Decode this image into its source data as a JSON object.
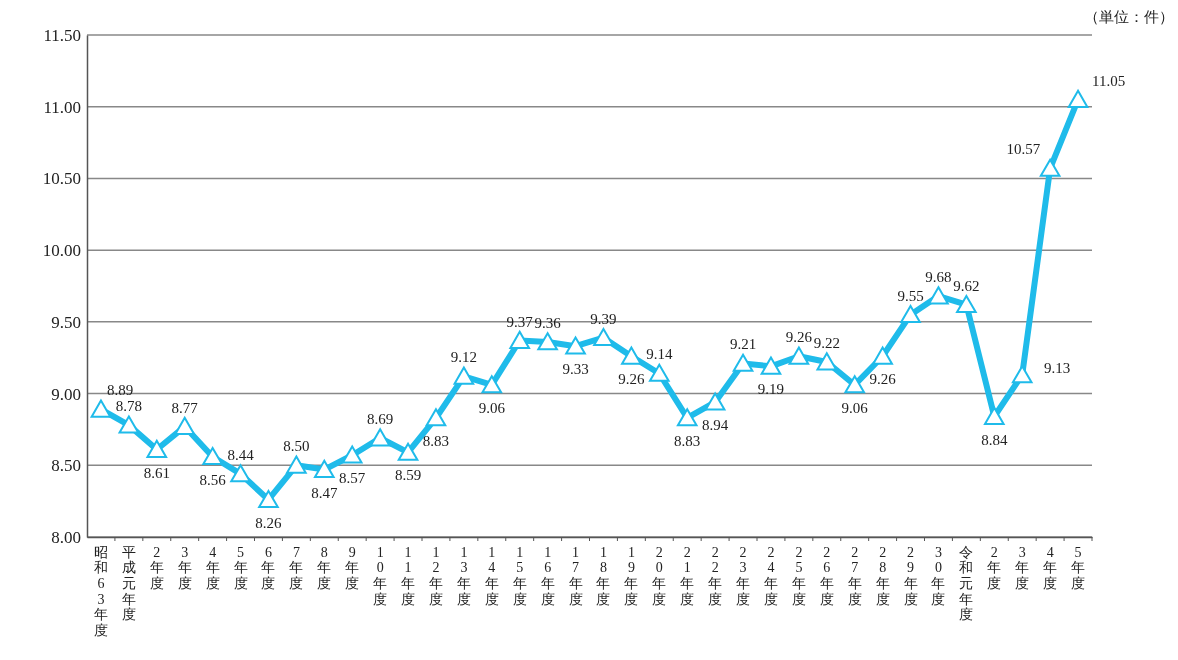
{
  "chart_data": {
    "type": "line",
    "categories": [
      "昭和63年度",
      "平成元年度",
      "2年度",
      "3年度",
      "4年度",
      "5年度",
      "6年度",
      "7年度",
      "8年度",
      "9年度",
      "10年度",
      "11年度",
      "12年度",
      "13年度",
      "14年度",
      "15年度",
      "16年度",
      "17年度",
      "18年度",
      "19年度",
      "20年度",
      "21年度",
      "22年度",
      "23年度",
      "24年度",
      "25年度",
      "26年度",
      "27年度",
      "28年度",
      "29年度",
      "30年度",
      "令和元年度",
      "2年度",
      "3年度",
      "4年度",
      "5年度"
    ],
    "series": [
      {
        "color": "#1fbbea",
        "values": [
          8.89,
          8.78,
          8.61,
          8.77,
          8.56,
          8.44,
          8.26,
          8.5,
          8.47,
          8.57,
          8.69,
          8.59,
          8.83,
          9.12,
          9.06,
          9.37,
          9.36,
          9.33,
          9.39,
          9.26,
          9.14,
          8.83,
          8.94,
          9.21,
          9.19,
          9.26,
          9.22,
          9.06,
          9.26,
          9.55,
          9.68,
          9.62,
          8.84,
          9.13,
          10.57,
          11.05
        ],
        "value_labels": [
          "8.89",
          "8.78",
          "8.61",
          "8.77",
          "8.56",
          "8.44",
          "8.26",
          "8.50",
          "8.47",
          "8.57",
          "8.69",
          "8.59",
          "8.83",
          "9.12",
          "9.06",
          "9.37",
          "9.36",
          "9.33",
          "9.39",
          "9.26",
          "9.14",
          "8.83",
          "8.94",
          "9.21",
          "9.19",
          "9.26",
          "9.22",
          "9.06",
          "9.26",
          "9.55",
          "9.68",
          "9.62",
          "8.84",
          "9.13",
          "10.57",
          "11.05"
        ]
      }
    ],
    "ylim": [
      8,
      11.5
    ],
    "yticks": [
      {
        "value": 8,
        "label": "8.00"
      },
      {
        "value": 8.5,
        "label": "8.50"
      },
      {
        "value": 9,
        "label": "9.00"
      },
      {
        "value": 9.5,
        "label": "9.50"
      },
      {
        "value": 10,
        "label": "10.00"
      },
      {
        "value": 10.5,
        "label": "10.50"
      },
      {
        "value": 11,
        "label": "11.00"
      },
      {
        "value": 11.5,
        "label": "11.50"
      }
    ],
    "grid": "y",
    "marker": "triangle",
    "line_style": "solid",
    "annotations": [
      "（単位：件）"
    ]
  }
}
